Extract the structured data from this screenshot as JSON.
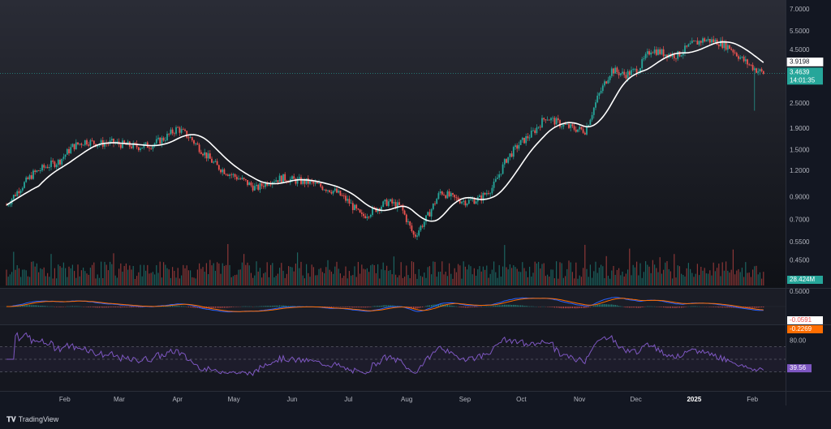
{
  "chart_data": [
    {
      "id": "price",
      "type": "candlestick",
      "scale": "log",
      "y_ticks": [
        "7.0000",
        "5.5000",
        "4.5000",
        "3.9198",
        "3.4639",
        "2.5000",
        "1.9000",
        "1.5000",
        "1.2000",
        "0.9000",
        "0.7000",
        "0.5500",
        "0.4500"
      ],
      "x_ticks": [
        "Feb",
        "Mar",
        "Apr",
        "May",
        "Jun",
        "Jul",
        "Aug",
        "Sep",
        "Oct",
        "Nov",
        "Dec",
        "2025",
        "Feb"
      ],
      "ylim": [
        0.34,
        7.0
      ],
      "close_path": [
        [
          "2024-01-01",
          0.82
        ],
        [
          "2024-01-08",
          0.98
        ],
        [
          "2024-01-15",
          1.15
        ],
        [
          "2024-01-22",
          1.25
        ],
        [
          "2024-01-29",
          1.32
        ],
        [
          "2024-02-05",
          1.55
        ],
        [
          "2024-02-12",
          1.65
        ],
        [
          "2024-02-19",
          1.6
        ],
        [
          "2024-02-26",
          1.62
        ],
        [
          "2024-03-04",
          1.58
        ],
        [
          "2024-03-11",
          1.55
        ],
        [
          "2024-03-18",
          1.58
        ],
        [
          "2024-03-25",
          1.7
        ],
        [
          "2024-04-01",
          1.9
        ],
        [
          "2024-04-08",
          1.7
        ],
        [
          "2024-04-15",
          1.45
        ],
        [
          "2024-04-22",
          1.25
        ],
        [
          "2024-04-29",
          1.15
        ],
        [
          "2024-05-06",
          1.07
        ],
        [
          "2024-05-13",
          0.98
        ],
        [
          "2024-05-20",
          1.07
        ],
        [
          "2024-05-27",
          1.1
        ],
        [
          "2024-06-03",
          1.07
        ],
        [
          "2024-06-10",
          1.05
        ],
        [
          "2024-06-17",
          1.0
        ],
        [
          "2024-06-24",
          0.95
        ],
        [
          "2024-07-01",
          0.85
        ],
        [
          "2024-07-08",
          0.72
        ],
        [
          "2024-07-15",
          0.78
        ],
        [
          "2024-07-22",
          0.85
        ],
        [
          "2024-07-29",
          0.8
        ],
        [
          "2024-08-05",
          0.58
        ],
        [
          "2024-08-12",
          0.72
        ],
        [
          "2024-08-19",
          0.95
        ],
        [
          "2024-08-26",
          0.88
        ],
        [
          "2024-09-02",
          0.85
        ],
        [
          "2024-09-09",
          0.88
        ],
        [
          "2024-09-16",
          1.0
        ],
        [
          "2024-09-23",
          1.35
        ],
        [
          "2024-09-30",
          1.6
        ],
        [
          "2024-10-07",
          1.8
        ],
        [
          "2024-10-14",
          2.15
        ],
        [
          "2024-10-21",
          2.0
        ],
        [
          "2024-10-28",
          1.9
        ],
        [
          "2024-11-04",
          1.85
        ],
        [
          "2024-11-11",
          2.7
        ],
        [
          "2024-11-18",
          3.6
        ],
        [
          "2024-11-25",
          3.4
        ],
        [
          "2024-12-02",
          3.6
        ],
        [
          "2024-12-09",
          4.5
        ],
        [
          "2024-12-16",
          4.3
        ],
        [
          "2024-12-23",
          4.2
        ],
        [
          "2024-12-30",
          4.7
        ],
        [
          "2025-01-06",
          5.0
        ],
        [
          "2025-01-13",
          4.9
        ],
        [
          "2025-01-20",
          4.6
        ],
        [
          "2025-01-27",
          4.0
        ],
        [
          "2025-02-03",
          3.6
        ],
        [
          "2025-02-07",
          3.4639
        ]
      ],
      "ma_last": 3.9198,
      "last_price": 3.4639,
      "countdown": "14:01:35",
      "volume_last": "28.424M",
      "colors": {
        "up": "#26a69a",
        "down": "#ef5350",
        "ma": "#ffffff",
        "price_tag": "#26a69a"
      }
    },
    {
      "id": "macd",
      "type": "line",
      "y_ticks": [
        "0.5000"
      ],
      "values": [
        "-0.0591",
        "-0.2269"
      ],
      "colors": {
        "macd": "#2962ff",
        "signal": "#ff6d00"
      }
    },
    {
      "id": "rsi",
      "type": "line",
      "y_ticks": [
        "80.00"
      ],
      "value": "39.56",
      "colors": {
        "line": "#7e57c2",
        "tag": "#7e57c2"
      }
    }
  ],
  "brand": {
    "label": "TradingView"
  }
}
